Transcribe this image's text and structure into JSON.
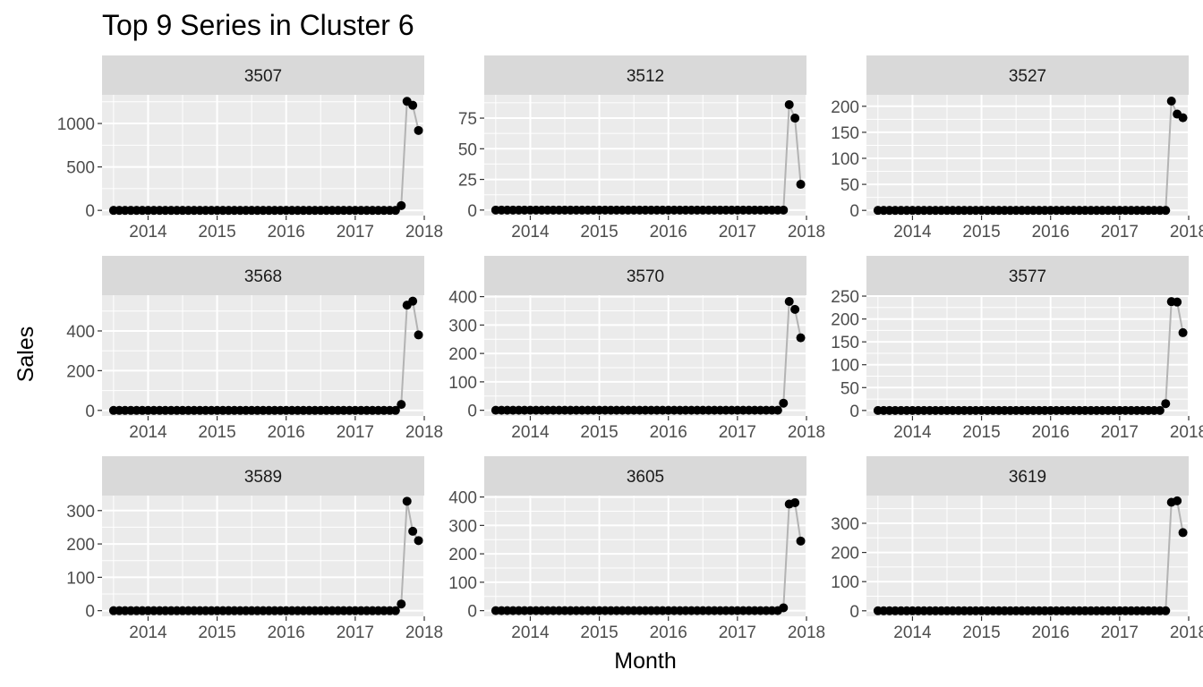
{
  "chart_data": {
    "type": "line",
    "title": "Top 9 Series in Cluster 6",
    "xlabel": "Month",
    "ylabel": "Sales",
    "xlim": [
      "2013-05",
      "2018-01"
    ],
    "x_ticks": [
      "2014",
      "2015",
      "2016",
      "2017",
      "2018"
    ],
    "x_start": "2013-07",
    "x_end": "2017-12",
    "grid": true,
    "line_color": "#b3b3b3",
    "point_color": "#000000",
    "panel_bg": "#ebebeb",
    "strip_bg": "#d9d9d9",
    "grid_color": "#ffffff",
    "panels": [
      {
        "name": "3507",
        "ylim": [
          -60,
          1330
        ],
        "y_ticks": [
          0,
          500,
          1000
        ],
        "tail": [
          55,
          1255,
          1210,
          920
        ]
      },
      {
        "name": "3512",
        "ylim": [
          -4.5,
          94
        ],
        "y_ticks": [
          0,
          25,
          50,
          75
        ],
        "tail": [
          0,
          86,
          75,
          21
        ]
      },
      {
        "name": "3527",
        "ylim": [
          -10,
          222
        ],
        "y_ticks": [
          0,
          50,
          100,
          150,
          200
        ],
        "tail": [
          0,
          210,
          185,
          178
        ]
      },
      {
        "name": "3568",
        "ylim": [
          -28,
          580
        ],
        "y_ticks": [
          0,
          200,
          400
        ],
        "tail": [
          30,
          530,
          550,
          380
        ]
      },
      {
        "name": "3570",
        "ylim": [
          -20,
          405
        ],
        "y_ticks": [
          0,
          100,
          200,
          300,
          400
        ],
        "tail": [
          25,
          383,
          355,
          255
        ]
      },
      {
        "name": "3577",
        "ylim": [
          -12,
          252
        ],
        "y_ticks": [
          0,
          50,
          100,
          150,
          200,
          250
        ],
        "tail": [
          15,
          238,
          237,
          170
        ]
      },
      {
        "name": "3589",
        "ylim": [
          -17,
          345
        ],
        "y_ticks": [
          0,
          100,
          200,
          300
        ],
        "tail": [
          20,
          328,
          238,
          210
        ]
      },
      {
        "name": "3605",
        "ylim": [
          -20,
          405
        ],
        "y_ticks": [
          0,
          100,
          200,
          300,
          400
        ],
        "tail": [
          10,
          375,
          380,
          245
        ]
      },
      {
        "name": "3619",
        "ylim": [
          -19,
          395
        ],
        "y_ticks": [
          0,
          100,
          200,
          300
        ],
        "tail": [
          0,
          372,
          377,
          268
        ]
      }
    ]
  }
}
